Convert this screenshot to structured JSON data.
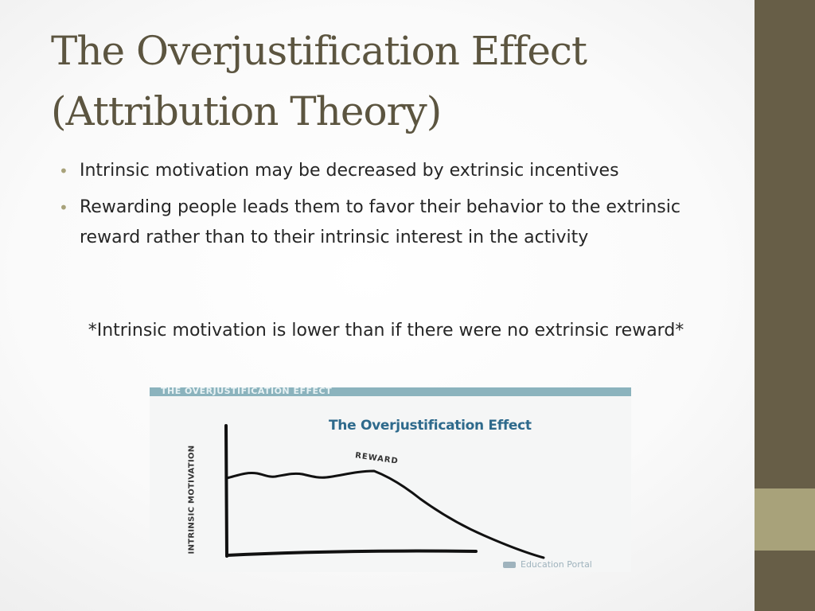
{
  "slide": {
    "title_line1": "The Overjustification Effect",
    "title_line2": "(Attribution Theory)",
    "bullets": [
      "Intrinsic motivation may be decreased by extrinsic incentives",
      "Rewarding people leads them to favor their behavior to the extrinsic reward rather than to their intrinsic interest in the activity"
    ],
    "note": "*Intrinsic motivation is lower than if there were no extrinsic reward*"
  },
  "figure": {
    "banner_text": "THE OVERJUSTIFICATION EFFECT",
    "heading": "The Overjustification Effect",
    "y_axis_label": "INTRINSIC MOTIVATION",
    "annotation": "REWARD",
    "credit": "Education Portal"
  },
  "colors": {
    "title": "#5c5540",
    "sidebar": "#675e47",
    "accent": "#a8a27a",
    "figure_heading": "#2e6a8c"
  }
}
